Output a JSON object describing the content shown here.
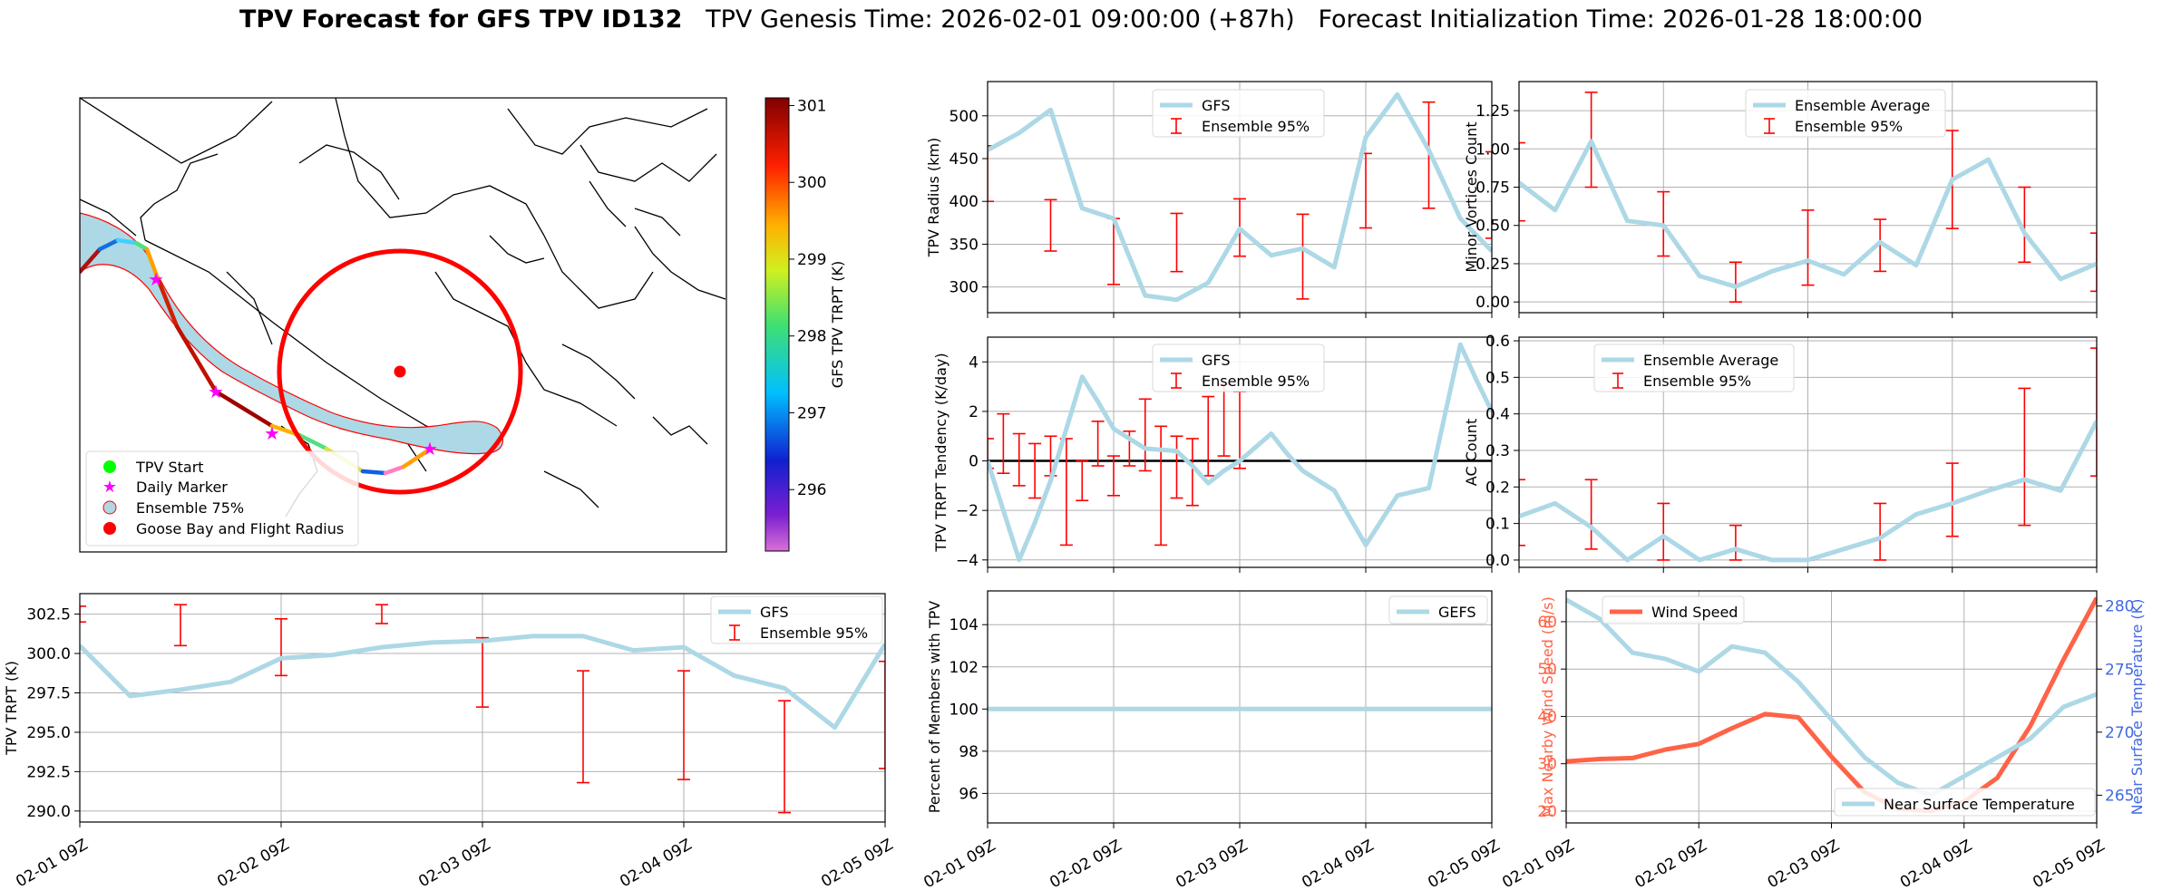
{
  "title": {
    "bold": "TPV Forecast for GFS TPV ID132",
    "genesis": "TPV Genesis Time: 2026-02-01 09:00:00 (+87h)",
    "init": "Forecast Initialization Time: 2026-01-28 18:00:00"
  },
  "colors": {
    "light_blue": "#add8e6",
    "red": "#ff0000",
    "tomato": "#ff6347",
    "royal_blue": "#4169e1"
  },
  "x_ticks": [
    "02-01 09Z",
    "02-02 09Z",
    "02-03 09Z",
    "02-04 09Z",
    "02-05 09Z"
  ],
  "map": {
    "legend": [
      "TPV Start",
      "Daily Marker",
      "Ensemble 75%",
      "Goose Bay and Flight Radius"
    ],
    "colorbar_label": "GFS TPV TRPT (K)",
    "colorbar_ticks": [
      296,
      297,
      298,
      299,
      300,
      301
    ],
    "colorbar_range": [
      295.2,
      301.1
    ]
  },
  "chart_data": [
    {
      "id": "radius",
      "type": "line",
      "ylabel": "TPV Radius (km)",
      "ylim": [
        270,
        540
      ],
      "yticks": [
        300,
        350,
        400,
        450,
        500
      ],
      "ytick_labels": [
        "300",
        "350",
        "400",
        "450",
        "500"
      ],
      "xticks": [
        "02-01 09Z",
        "02-02 09Z",
        "02-03 09Z",
        "02-04 09Z",
        "02-05 09Z"
      ],
      "legend": [
        "GFS",
        "Ensemble 95%"
      ],
      "legend_pos": "top-center",
      "series": [
        {
          "name": "GFS",
          "x": [
            0,
            0.25,
            0.5,
            0.75,
            1,
            1.25,
            1.5,
            1.75,
            2,
            2.25,
            2.5,
            2.75,
            3,
            3.25,
            3.5,
            3.75,
            4
          ],
          "values": [
            460,
            480,
            507,
            392,
            380,
            290,
            285,
            305,
            368,
            337,
            345,
            323,
            475,
            525,
            460,
            380,
            342
          ]
        }
      ],
      "errorbars": [
        {
          "x": 0,
          "lo": 400,
          "hi": 465
        },
        {
          "x": 0.5,
          "lo": 342,
          "hi": 402
        },
        {
          "x": 1,
          "lo": 303,
          "hi": 380
        },
        {
          "x": 1.5,
          "lo": 318,
          "hi": 386
        },
        {
          "x": 2,
          "lo": 336,
          "hi": 403
        },
        {
          "x": 2.5,
          "lo": 286,
          "hi": 385
        },
        {
          "x": 3,
          "lo": 369,
          "hi": 456
        },
        {
          "x": 3.5,
          "lo": 392,
          "hi": 516
        },
        {
          "x": 4,
          "lo": 357,
          "hi": 458
        }
      ]
    },
    {
      "id": "minor",
      "type": "line",
      "ylabel": "Minor Vortices Count",
      "ylim": [
        -0.07,
        1.44
      ],
      "yticks": [
        0,
        0.25,
        0.5,
        0.75,
        1.0,
        1.25
      ],
      "ytick_labels": [
        "0.00",
        "0.25",
        "0.50",
        "0.75",
        "1.00",
        "1.25"
      ],
      "xticks": [
        "02-01 09Z",
        "02-02 09Z",
        "02-03 09Z",
        "02-04 09Z",
        "02-05 09Z"
      ],
      "legend": [
        "Ensemble Average",
        "Ensemble 95%"
      ],
      "legend_pos": "top-center",
      "series": [
        {
          "name": "Ensemble Average",
          "x": [
            0,
            0.25,
            0.5,
            0.75,
            1,
            1.25,
            1.5,
            1.75,
            2,
            2.25,
            2.5,
            2.75,
            3,
            3.25,
            3.5,
            3.75,
            4
          ],
          "values": [
            0.78,
            0.6,
            1.05,
            0.53,
            0.5,
            0.17,
            0.1,
            0.2,
            0.27,
            0.18,
            0.39,
            0.24,
            0.8,
            0.93,
            0.45,
            0.15,
            0.25
          ]
        }
      ],
      "errorbars": [
        {
          "x": 0,
          "lo": 0.53,
          "hi": 1.04
        },
        {
          "x": 0.5,
          "lo": 0.75,
          "hi": 1.37
        },
        {
          "x": 1,
          "lo": 0.3,
          "hi": 0.72
        },
        {
          "x": 1.5,
          "lo": 0.0,
          "hi": 0.26
        },
        {
          "x": 2,
          "lo": 0.11,
          "hi": 0.6
        },
        {
          "x": 2.5,
          "lo": 0.2,
          "hi": 0.54
        },
        {
          "x": 3,
          "lo": 0.48,
          "hi": 1.12
        },
        {
          "x": 3.5,
          "lo": 0.26,
          "hi": 0.75
        },
        {
          "x": 4,
          "lo": 0.07,
          "hi": 0.45
        }
      ]
    },
    {
      "id": "tendency",
      "type": "line",
      "ylabel": "TPV TRPT Tendency (K/day)",
      "ylim": [
        -4.3,
        5.0
      ],
      "yticks": [
        -4,
        -2,
        0,
        2,
        4
      ],
      "ytick_labels": [
        "−4",
        "−2",
        "0",
        "2",
        "4"
      ],
      "xticks": [
        "02-01 09Z",
        "02-02 09Z",
        "02-03 09Z",
        "02-04 09Z",
        "02-05 09Z"
      ],
      "legend": [
        "GFS",
        "Ensemble 95%"
      ],
      "legend_pos": "top-center",
      "series": [
        {
          "name": "GFS",
          "x": [
            0,
            0.125,
            0.25,
            0.375,
            0.5,
            0.625,
            0.75,
            0.875,
            1,
            1.125,
            1.25,
            1.375,
            1.5,
            1.625,
            1.75,
            1.875,
            2,
            2.125,
            2.25,
            2.375,
            2.5,
            2.625,
            2.75,
            2.875,
            3,
            3.125,
            3.25,
            3.375,
            3.5,
            3.625,
            3.75,
            3.875,
            4
          ],
          "values": [
            0,
            -2.0,
            -4.0,
            -2.5,
            -0.8,
            1.3,
            3.4,
            2.4,
            1.3,
            0.9,
            0.5,
            0.45,
            0.4,
            -0.2,
            -0.9,
            -0.4,
            0,
            0.55,
            1.1,
            0.3,
            -0.4,
            -0.8,
            -1.2,
            -2.3,
            -3.4,
            -2.4,
            -1.4,
            -1.25,
            -1.1,
            1.8,
            4.7,
            3.3,
            2.0
          ]
        }
      ],
      "errorbars": [
        {
          "x": 0,
          "lo": -0.3,
          "hi": 0.9
        },
        {
          "x": 0.125,
          "lo": -0.5,
          "hi": 1.9
        },
        {
          "x": 0.25,
          "lo": -1.0,
          "hi": 1.1
        },
        {
          "x": 0.375,
          "lo": -1.5,
          "hi": 0.7
        },
        {
          "x": 0.5,
          "lo": -0.6,
          "hi": 1.0
        },
        {
          "x": 0.625,
          "lo": -3.4,
          "hi": 0.9
        },
        {
          "x": 0.75,
          "lo": -1.6,
          "hi": 0.0
        },
        {
          "x": 0.875,
          "lo": -0.2,
          "hi": 1.6
        },
        {
          "x": 1,
          "lo": -1.4,
          "hi": 0.2
        },
        {
          "x": 1.125,
          "lo": -0.2,
          "hi": 1.2
        },
        {
          "x": 1.25,
          "lo": -0.4,
          "hi": 2.5
        },
        {
          "x": 1.375,
          "lo": -3.4,
          "hi": 1.4
        },
        {
          "x": 1.5,
          "lo": -1.5,
          "hi": 1.0
        },
        {
          "x": 1.625,
          "lo": -1.8,
          "hi": 0.9
        },
        {
          "x": 1.75,
          "lo": -0.6,
          "hi": 2.6
        },
        {
          "x": 1.875,
          "lo": 0.2,
          "hi": 3.1
        },
        {
          "x": 2,
          "lo": -0.3,
          "hi": 2.8
        }
      ]
    },
    {
      "id": "ac",
      "type": "line",
      "ylabel": "AC Count",
      "ylim": [
        -0.02,
        0.61
      ],
      "yticks": [
        0,
        0.1,
        0.2,
        0.3,
        0.4,
        0.5,
        0.6
      ],
      "ytick_labels": [
        "0.0",
        "0.1",
        "0.2",
        "0.3",
        "0.4",
        "0.5",
        "0.6"
      ],
      "xticks": [
        "02-01 09Z",
        "02-02 09Z",
        "02-03 09Z",
        "02-04 09Z",
        "02-05 09Z"
      ],
      "legend": [
        "Ensemble Average",
        "Ensemble 95%"
      ],
      "legend_pos": "top-left",
      "series": [
        {
          "name": "Ensemble Average",
          "x": [
            0,
            0.25,
            0.5,
            0.75,
            1,
            1.25,
            1.5,
            1.75,
            2,
            2.25,
            2.5,
            2.75,
            3,
            3.25,
            3.5,
            3.75,
            4
          ],
          "values": [
            0.12,
            0.155,
            0.09,
            0.0,
            0.065,
            0.0,
            0.03,
            0.0,
            0.0,
            0.03,
            0.06,
            0.125,
            0.155,
            0.19,
            0.22,
            0.19,
            0.38
          ]
        }
      ],
      "errorbars": [
        {
          "x": 0,
          "lo": 0.04,
          "hi": 0.22
        },
        {
          "x": 0.5,
          "lo": 0.03,
          "hi": 0.22
        },
        {
          "x": 1,
          "lo": 0.0,
          "hi": 0.155
        },
        {
          "x": 1.5,
          "lo": 0.0,
          "hi": 0.095
        },
        {
          "x": 2,
          "lo": 0.0,
          "hi": 0.0
        },
        {
          "x": 2.5,
          "lo": 0.0,
          "hi": 0.155
        },
        {
          "x": 3,
          "lo": 0.065,
          "hi": 0.265
        },
        {
          "x": 3.5,
          "lo": 0.095,
          "hi": 0.47
        },
        {
          "x": 4,
          "lo": 0.23,
          "hi": 0.58
        }
      ]
    },
    {
      "id": "trpt",
      "type": "line",
      "ylabel": "TPV TRPT (K)",
      "ylim": [
        289.3,
        303.8
      ],
      "yticks": [
        290,
        292.5,
        295,
        297.5,
        300,
        302.5
      ],
      "ytick_labels": [
        "290.0",
        "292.5",
        "295.0",
        "297.5",
        "300.0",
        "302.5"
      ],
      "xticks": [
        "02-01 09Z",
        "02-02 09Z",
        "02-03 09Z",
        "02-04 09Z",
        "02-05 09Z"
      ],
      "legend": [
        "GFS",
        "Ensemble 95%"
      ],
      "legend_pos": "top-right",
      "series": [
        {
          "name": "GFS",
          "x": [
            0,
            0.25,
            0.5,
            0.75,
            1,
            1.25,
            1.5,
            1.75,
            2,
            2.25,
            2.5,
            2.75,
            3,
            3.25,
            3.5,
            3.75,
            4
          ],
          "values": [
            300.5,
            297.3,
            297.7,
            298.2,
            299.7,
            299.9,
            300.4,
            300.7,
            300.8,
            301.1,
            301.1,
            300.2,
            300.4,
            298.6,
            297.8,
            295.3,
            300.6
          ]
        }
      ],
      "errorbars": [
        {
          "x": 0,
          "lo": 302,
          "hi": 303
        },
        {
          "x": 0.5,
          "lo": 300.5,
          "hi": 303.1
        },
        {
          "x": 1,
          "lo": 298.6,
          "hi": 302.2
        },
        {
          "x": 1.5,
          "lo": 301.9,
          "hi": 303.1
        },
        {
          "x": 2,
          "lo": 296.6,
          "hi": 301.0
        },
        {
          "x": 2.5,
          "lo": 291.8,
          "hi": 298.9
        },
        {
          "x": 3,
          "lo": 292.0,
          "hi": 298.9
        },
        {
          "x": 3.5,
          "lo": 289.9,
          "hi": 297.0
        },
        {
          "x": 4,
          "lo": 292.7,
          "hi": 299.5
        }
      ]
    },
    {
      "id": "members",
      "type": "line",
      "ylabel": "Percent of Members with TPV",
      "ylim": [
        94.6,
        105.6
      ],
      "yticks": [
        96,
        98,
        100,
        102,
        104
      ],
      "ytick_labels": [
        "96",
        "98",
        "100",
        "102",
        "104"
      ],
      "xticks": [
        "02-01 09Z",
        "02-02 09Z",
        "02-03 09Z",
        "02-04 09Z",
        "02-05 09Z"
      ],
      "legend": [
        "GEFS"
      ],
      "legend_pos": "top-right",
      "series": [
        {
          "name": "GEFS",
          "x": [
            0,
            4
          ],
          "values": [
            100,
            100
          ]
        }
      ],
      "errorbars": []
    },
    {
      "id": "wind",
      "type": "line",
      "ylabel": "Max Nearby Wind Speed (m/s)",
      "ylim": [
        17.5,
        66.5
      ],
      "yticks": [
        20,
        30,
        40,
        50,
        60
      ],
      "ytick_labels": [
        "20",
        "30",
        "40",
        "50",
        "60"
      ],
      "y2label": "Near Surface Temperature (K)",
      "y2lim": [
        262.8,
        281.2
      ],
      "y2ticks": [
        265,
        270,
        275,
        280
      ],
      "y2tick_labels": [
        "265",
        "270",
        "275",
        "280"
      ],
      "xticks": [
        "02-01 09Z",
        "02-02 09Z",
        "02-03 09Z",
        "02-04 09Z",
        "02-05 09Z"
      ],
      "legend": [
        "Wind Speed",
        "Near Surface Temperature"
      ],
      "legend_pos": "top-left / bottom-right",
      "series": [
        {
          "name": "Wind Speed",
          "axis": "left",
          "x": [
            0,
            0.25,
            0.5,
            0.75,
            1,
            1.25,
            1.5,
            1.75,
            2,
            2.25,
            2.5,
            2.75,
            3,
            3.25,
            3.5,
            3.75,
            4
          ],
          "values": [
            30.5,
            31,
            31.2,
            33,
            34.2,
            37.5,
            40.5,
            39.8,
            31.5,
            24,
            20.5,
            20,
            22,
            27,
            38,
            52,
            65
          ]
        },
        {
          "name": "Near Surface Temperature",
          "axis": "right",
          "x": [
            0,
            0.25,
            0.5,
            0.75,
            1,
            1.25,
            1.5,
            1.75,
            2,
            2.25,
            2.5,
            2.75,
            3,
            3.25,
            3.5,
            3.75,
            4
          ],
          "values": [
            280.5,
            279,
            276.3,
            275.8,
            274.8,
            276.8,
            276.3,
            274,
            271,
            268,
            266,
            265,
            266.5,
            268,
            269.5,
            272,
            273
          ]
        }
      ],
      "errorbars": []
    }
  ]
}
